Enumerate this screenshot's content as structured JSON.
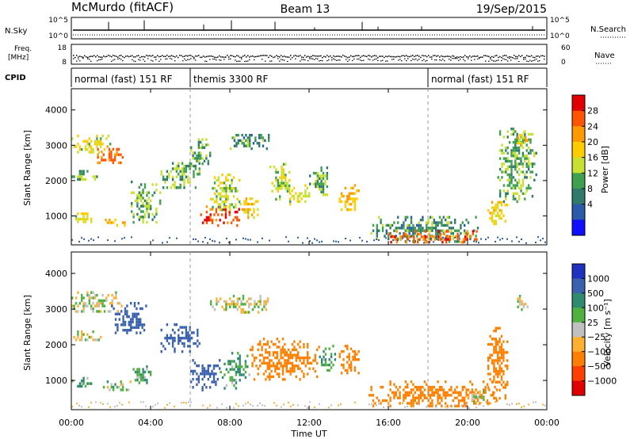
{
  "header": {
    "station": "McMurdo (fitACF)",
    "beam": "Beam 13",
    "date": "19/Sep/2015"
  },
  "summary_panels": {
    "nsky_label": "N.Sky",
    "nsearch_label": "N.Search",
    "log_top": "10^5",
    "log_bottom": "10^0",
    "freq_label_line1": "Freq.",
    "freq_label_line2": "[MHz]",
    "freq_ticks": [
      "18",
      "8"
    ],
    "nave_label": "Nave",
    "nave_ticks": [
      "60",
      "0"
    ],
    "cpid_label": "CPID",
    "cpid_segments": [
      {
        "label": "normal (fast) 151 RF",
        "start_h": 0,
        "end_h": 6
      },
      {
        "label": "themis 3300 RF",
        "start_h": 6,
        "end_h": 18
      },
      {
        "label": "normal (fast) 151 RF",
        "start_h": 18,
        "end_h": 24
      }
    ]
  },
  "axes": {
    "x_label": "Time UT",
    "x_ticks": [
      "00:00",
      "04:00",
      "08:00",
      "12:00",
      "16:00",
      "20:00",
      "00:00"
    ],
    "x_tick_hours": [
      0,
      4,
      8,
      12,
      16,
      20,
      24
    ],
    "xlim": [
      0,
      24
    ],
    "y_label": "Slant Range [km]",
    "y_ticks": [
      1000,
      2000,
      3000,
      4000
    ],
    "ylim": [
      180,
      4600
    ]
  },
  "power_scale": {
    "label": "Power [dB]",
    "ticks": [
      "28",
      "24",
      "20",
      "16",
      "12",
      "8",
      "4"
    ],
    "colors": [
      "#e00000",
      "#ff5500",
      "#ff9900",
      "#ffcc00",
      "#c8e030",
      "#3fa050",
      "#2f7a6a",
      "#2a5aa8",
      "#1010ff"
    ]
  },
  "velocity_scale": {
    "label": "Velocity [m s⁻¹]",
    "ticks": [
      "1000",
      "500",
      "100",
      "25",
      "−25",
      "−100",
      "−500",
      "−1000"
    ],
    "colors": [
      "#2030c0",
      "#3a60b0",
      "#2f8a70",
      "#50b040",
      "#c0c0c0",
      "#ffb030",
      "#ff8000",
      "#ff4000",
      "#e00000"
    ]
  },
  "chart_data": [
    {
      "type": "heatmap",
      "name": "power",
      "xlabel": "Time UT",
      "ylabel": "Slant Range [km]",
      "xlim": [
        0,
        24
      ],
      "ylim": [
        180,
        4600
      ],
      "colorbar_label": "Power [dB]",
      "regions": [
        {
          "t0": 0.0,
          "t1": 2.0,
          "r0": 2800,
          "r1": 3300,
          "level": 16
        },
        {
          "t0": 1.2,
          "t1": 2.6,
          "r0": 2500,
          "r1": 3000,
          "level": 24
        },
        {
          "t0": 0.0,
          "t1": 1.5,
          "r0": 2000,
          "r1": 2300,
          "level": 12
        },
        {
          "t0": 0.0,
          "t1": 1.0,
          "r0": 800,
          "r1": 1100,
          "level": 16
        },
        {
          "t0": 1.5,
          "t1": 2.7,
          "r0": 750,
          "r1": 1000,
          "level": 20
        },
        {
          "t0": 3.0,
          "t1": 4.5,
          "r0": 800,
          "r1": 2000,
          "level": 12
        },
        {
          "t0": 4.5,
          "t1": 6.5,
          "r0": 1800,
          "r1": 2600,
          "level": 12
        },
        {
          "t0": 6.0,
          "t1": 7.0,
          "r0": 2500,
          "r1": 3200,
          "level": 12
        },
        {
          "t0": 6.5,
          "t1": 8.5,
          "r0": 700,
          "r1": 1300,
          "level": 26
        },
        {
          "t0": 7.0,
          "t1": 8.5,
          "r0": 1200,
          "r1": 2200,
          "level": 14
        },
        {
          "t0": 8.0,
          "t1": 10.0,
          "r0": 2900,
          "r1": 3400,
          "level": 10
        },
        {
          "t0": 8.5,
          "t1": 9.5,
          "r0": 900,
          "r1": 1600,
          "level": 18
        },
        {
          "t0": 10.0,
          "t1": 11.0,
          "r0": 1500,
          "r1": 2500,
          "level": 14
        },
        {
          "t0": 11.0,
          "t1": 12.0,
          "r0": 1300,
          "r1": 1900,
          "level": 16
        },
        {
          "t0": 12.0,
          "t1": 13.0,
          "r0": 1600,
          "r1": 2400,
          "level": 12
        },
        {
          "t0": 13.5,
          "t1": 14.5,
          "r0": 1100,
          "r1": 1900,
          "level": 20
        },
        {
          "t0": 15.0,
          "t1": 20.5,
          "r0": 300,
          "r1": 1000,
          "level": 10
        },
        {
          "t0": 16.0,
          "t1": 20.5,
          "r0": 250,
          "r1": 600,
          "level": 26
        },
        {
          "t0": 21.0,
          "t1": 22.0,
          "r0": 800,
          "r1": 1500,
          "level": 18
        },
        {
          "t0": 21.5,
          "t1": 23.5,
          "r0": 1400,
          "r1": 3500,
          "level": 12
        },
        {
          "t0": 22.5,
          "t1": 23.0,
          "r0": 3000,
          "r1": 3400,
          "level": 18
        }
      ]
    },
    {
      "type": "heatmap",
      "name": "velocity",
      "xlabel": "Time UT",
      "ylabel": "Slant Range [km]",
      "xlim": [
        0,
        24
      ],
      "ylim": [
        180,
        4600
      ],
      "colorbar_label": "Velocity [m s⁻¹]",
      "regions": [
        {
          "t0": 0.0,
          "t1": 2.5,
          "r0": 2900,
          "r1": 3500,
          "level": 0
        },
        {
          "t0": 2.0,
          "t1": 3.8,
          "r0": 2300,
          "r1": 3200,
          "level": 600
        },
        {
          "t0": 0.0,
          "t1": 1.5,
          "r0": 2100,
          "r1": 2400,
          "level": 0
        },
        {
          "t0": 0.0,
          "t1": 1.0,
          "r0": 800,
          "r1": 1100,
          "level": 100
        },
        {
          "t0": 1.5,
          "t1": 3.0,
          "r0": 700,
          "r1": 1000,
          "level": 50
        },
        {
          "t0": 3.0,
          "t1": 4.0,
          "r0": 900,
          "r1": 1500,
          "level": 100
        },
        {
          "t0": 4.5,
          "t1": 6.5,
          "r0": 1800,
          "r1": 2600,
          "level": 600
        },
        {
          "t0": 6.0,
          "t1": 7.5,
          "r0": 700,
          "r1": 1600,
          "level": 600
        },
        {
          "t0": 7.5,
          "t1": 9.0,
          "r0": 800,
          "r1": 1800,
          "level": 100
        },
        {
          "t0": 7.0,
          "t1": 10.0,
          "r0": 2900,
          "r1": 3400,
          "level": 0
        },
        {
          "t0": 9.0,
          "t1": 12.5,
          "r0": 1000,
          "r1": 2200,
          "level": -200
        },
        {
          "t0": 12.5,
          "t1": 13.3,
          "r0": 1300,
          "r1": 2000,
          "level": 100
        },
        {
          "t0": 13.5,
          "t1": 14.5,
          "r0": 1200,
          "r1": 2000,
          "level": -200
        },
        {
          "t0": 15.0,
          "t1": 21.5,
          "r0": 300,
          "r1": 1000,
          "level": -300
        },
        {
          "t0": 20.0,
          "t1": 21.0,
          "r0": 400,
          "r1": 800,
          "level": 0
        },
        {
          "t0": 21.0,
          "t1": 22.0,
          "r0": 500,
          "r1": 2500,
          "level": -200
        },
        {
          "t0": 22.5,
          "t1": 23.0,
          "r0": 3000,
          "r1": 3400,
          "level": 0
        }
      ]
    }
  ]
}
